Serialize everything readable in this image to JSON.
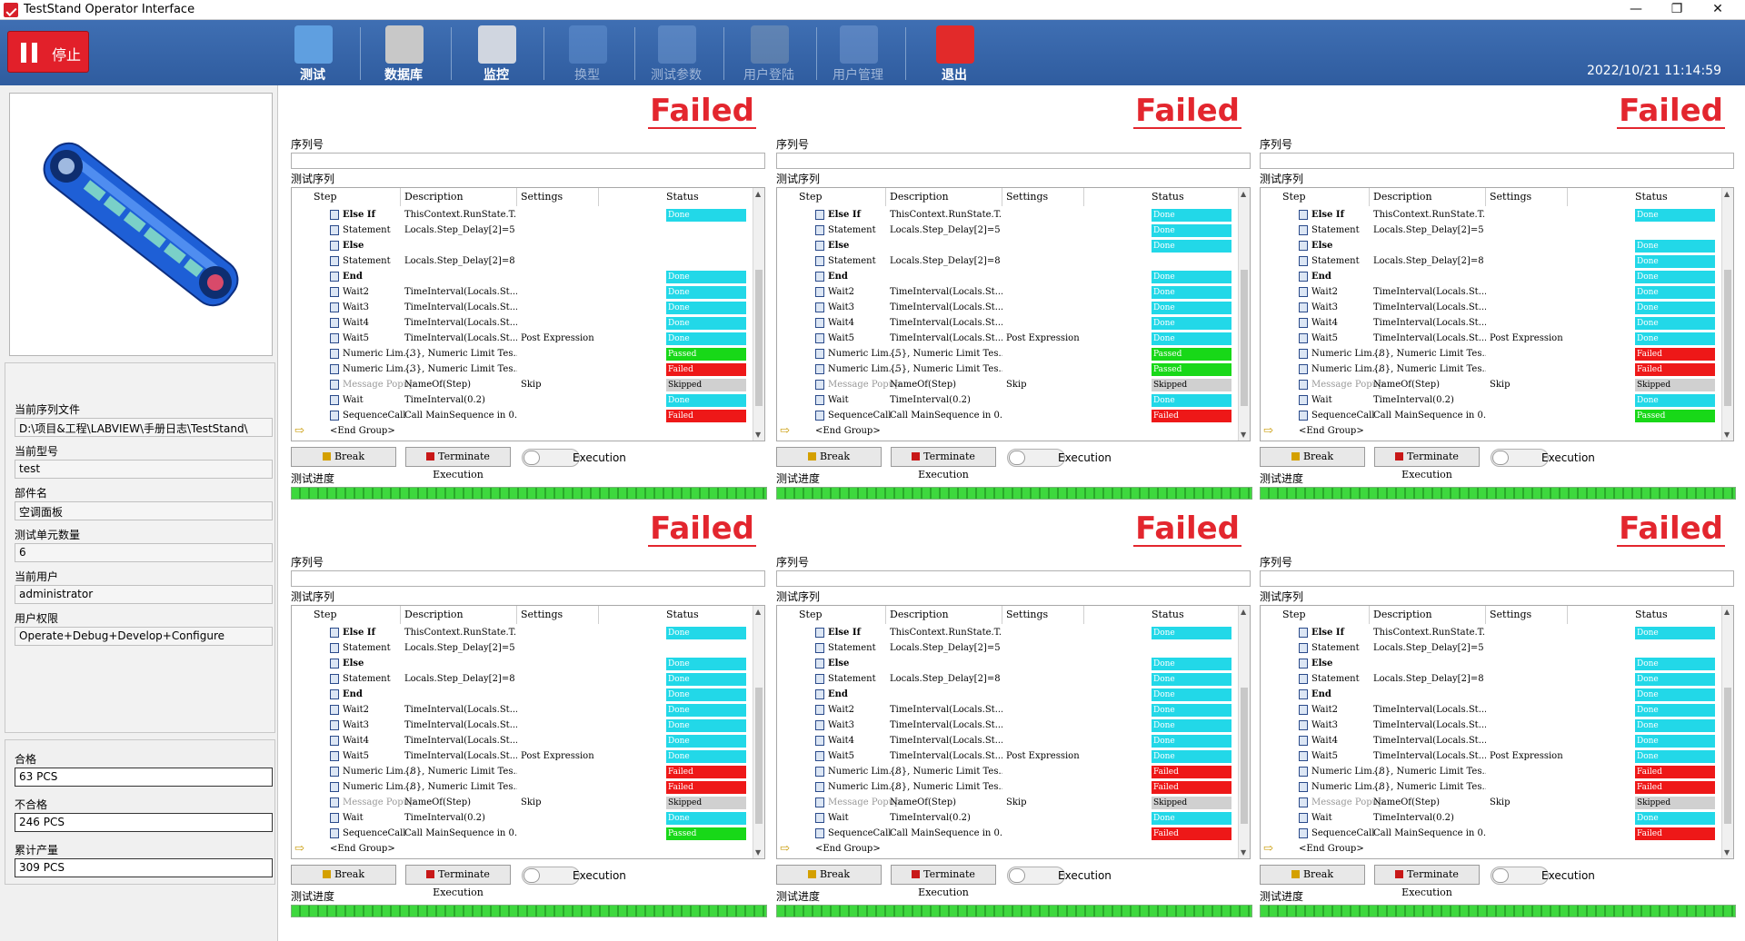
{
  "window": {
    "title": "TestStand Operator Interface",
    "min": "—",
    "restore": "❐",
    "close": "✕"
  },
  "toolbar": {
    "stop_label": "停止",
    "items": [
      {
        "label": "测试",
        "icon": "chart-monitor-icon",
        "enabled": true
      },
      {
        "label": "数据库",
        "icon": "database-icon",
        "enabled": true
      },
      {
        "label": "监控",
        "icon": "tools-icon",
        "enabled": true
      },
      {
        "label": "换型",
        "icon": "swap-icon",
        "enabled": false
      },
      {
        "label": "测试参数",
        "icon": "edit-params-icon",
        "enabled": false
      },
      {
        "label": "用户登陆",
        "icon": "login-door-icon",
        "enabled": false
      },
      {
        "label": "用户管理",
        "icon": "shield-icon",
        "enabled": false
      },
      {
        "label": "退出",
        "icon": "power-icon",
        "enabled": true
      }
    ],
    "datetime": "2022/10/21 11:14:59"
  },
  "info": {
    "seq_file_label": "当前序列文件",
    "seq_file": "D:\\项目&工程\\LABVIEW\\手册日志\\TestStand\\",
    "model_label": "当前型号",
    "model": "test",
    "part_label": "部件名",
    "part": "空调面板",
    "units_label": "测试单元数量",
    "units": "6",
    "user_label": "当前用户",
    "user": "administrator",
    "rights_label": "用户权限",
    "rights": "Operate+Debug+Develop+Configure"
  },
  "counts": {
    "pass_label": "合格",
    "pass": "63 PCS",
    "fail_label": "不合格",
    "fail": "246 PCS",
    "total_label": "累计产量",
    "total": "309 PCS"
  },
  "panel_common": {
    "serial_label": "序列号",
    "seq_label": "测试序列",
    "progress_label": "测试进度",
    "headers": {
      "step": "Step",
      "description": "Description",
      "settings": "Settings",
      "status": "Status"
    },
    "break": "Break",
    "terminate": "Terminate Execution",
    "execution": "Execution"
  },
  "steps": [
    {
      "name": "Else If",
      "desc": "ThisContext.RunState.T...",
      "settings": "",
      "bold": true
    },
    {
      "name": "Statement",
      "desc": "Locals.Step_Delay[2]=5",
      "settings": ""
    },
    {
      "name": "Else",
      "desc": "",
      "settings": "",
      "bold": true
    },
    {
      "name": "Statement",
      "desc": "Locals.Step_Delay[2]=8",
      "settings": ""
    },
    {
      "name": "End",
      "desc": "",
      "settings": "",
      "bold": true
    },
    {
      "name": "Wait2",
      "desc": "TimeInterval(Locals.St...",
      "settings": ""
    },
    {
      "name": "Wait3",
      "desc": "TimeInterval(Locals.St...",
      "settings": ""
    },
    {
      "name": "Wait4",
      "desc": "TimeInterval(Locals.St...",
      "settings": ""
    },
    {
      "name": "Wait5",
      "desc": "TimeInterval(Locals.St...",
      "settings": "Post Expression"
    },
    {
      "name": "Numeric Lim...",
      "desc": "{3}, Numeric Limit Tes...",
      "settings": ""
    },
    {
      "name": "Numeric Lim...",
      "desc": "{3}, Numeric Limit Tes...",
      "settings": ""
    },
    {
      "name": "Message Popup",
      "desc": "NameOf(Step)",
      "settings": "Skip"
    },
    {
      "name": "Wait",
      "desc": "TimeInterval(0.2)",
      "settings": ""
    },
    {
      "name": "SequenceCall",
      "desc": "Call MainSequence in 0...",
      "settings": ""
    },
    {
      "name": "<End Group>",
      "desc": "",
      "settings": ""
    }
  ],
  "panels": [
    {
      "result": "Failed",
      "limit": "{3}, Numeric Limit Tes...",
      "status": [
        "Done",
        "",
        "",
        "",
        "Done",
        "Done",
        "Done",
        "Done",
        "Done",
        "Passed",
        "Failed",
        "Skipped",
        "Done",
        "Failed",
        ""
      ]
    },
    {
      "result": "Failed",
      "limit": "{5}, Numeric Limit Tes...",
      "status": [
        "Done",
        "Done",
        "Done",
        "",
        "Done",
        "Done",
        "Done",
        "Done",
        "Done",
        "Passed",
        "Passed",
        "Skipped",
        "Done",
        "Failed",
        ""
      ]
    },
    {
      "result": "Failed",
      "limit": "{8}, Numeric Limit Tes...",
      "status": [
        "Done",
        "",
        "Done",
        "Done",
        "Done",
        "Done",
        "Done",
        "Done",
        "Done",
        "Failed",
        "Failed",
        "Skipped",
        "Done",
        "Passed",
        ""
      ]
    },
    {
      "result": "Failed",
      "limit": "{8}, Numeric Limit Tes...",
      "status": [
        "Done",
        "",
        "Done",
        "Done",
        "Done",
        "Done",
        "Done",
        "Done",
        "Done",
        "Failed",
        "Failed",
        "Skipped",
        "Done",
        "Passed",
        ""
      ]
    },
    {
      "result": "Failed",
      "limit": "{8}, Numeric Limit Tes...",
      "status": [
        "Done",
        "",
        "Done",
        "Done",
        "Done",
        "Done",
        "Done",
        "Done",
        "Done",
        "Failed",
        "Failed",
        "Skipped",
        "Done",
        "Failed",
        ""
      ]
    },
    {
      "result": "Failed",
      "limit": "{8}, Numeric Limit Tes...",
      "status": [
        "Done",
        "",
        "Done",
        "Done",
        "Done",
        "Done",
        "Done",
        "Done",
        "Done",
        "Failed",
        "Failed",
        "Skipped",
        "Done",
        "Failed",
        ""
      ]
    }
  ]
}
